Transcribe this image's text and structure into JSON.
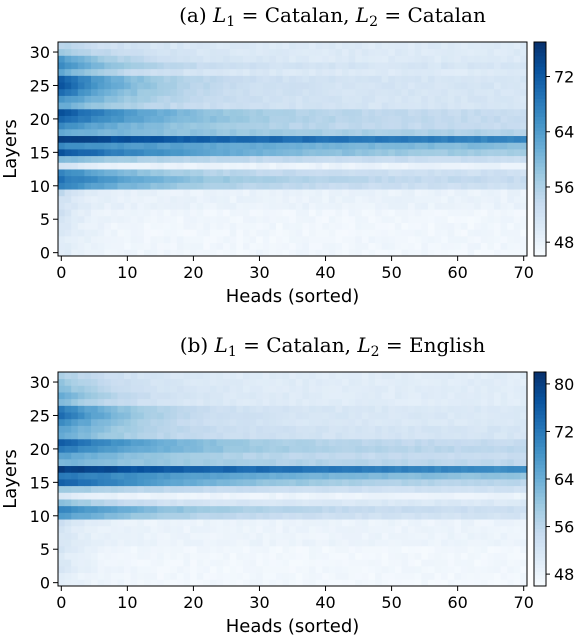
{
  "chart_data": [
    {
      "type": "heatmap",
      "title_parts": [
        "(a) ",
        "L",
        "1",
        " = Catalan, ",
        "L",
        "2",
        " = Catalan"
      ],
      "xlabel": "Heads (sorted)",
      "ylabel": "Layers",
      "xticks": [
        0,
        10,
        20,
        30,
        40,
        50,
        60,
        70
      ],
      "yticks": [
        0,
        5,
        10,
        15,
        20,
        25,
        30
      ],
      "xlim": [
        0,
        71
      ],
      "ylim": [
        0,
        31
      ],
      "colorbar": {
        "ticks": [
          48,
          56,
          64,
          72
        ],
        "min": 46,
        "max": 77
      },
      "colormap": [
        "#f7fbff",
        "#deebf7",
        "#c6dbef",
        "#9ecae1",
        "#6baed6",
        "#4292c6",
        "#2171b5",
        "#08519c",
        "#08306b"
      ],
      "layer_peak_values": [
        50,
        50,
        50,
        51,
        51,
        52,
        52,
        52,
        52,
        54,
        67,
        69,
        67,
        52,
        60,
        73,
        66,
        75,
        62,
        66,
        71,
        73,
        62,
        65,
        70,
        73,
        72,
        62,
        66,
        64,
        58,
        55
      ],
      "layer_tail_values": [
        47,
        47,
        47,
        47,
        47,
        47,
        47,
        48,
        48,
        48,
        52,
        53,
        52,
        48,
        53,
        56,
        58,
        63,
        55,
        53,
        53,
        53,
        51,
        51,
        51,
        51,
        51,
        50,
        51,
        50,
        50,
        50
      ],
      "layer_decay_heads": [
        4,
        4,
        4,
        4,
        4,
        4,
        4,
        4,
        4,
        4,
        18,
        20,
        16,
        4,
        18,
        24,
        40,
        60,
        30,
        20,
        20,
        18,
        14,
        14,
        12,
        12,
        12,
        10,
        12,
        10,
        10,
        10
      ]
    },
    {
      "type": "heatmap",
      "title_parts": [
        "(b) ",
        "L",
        "1",
        " = Catalan, ",
        "L",
        "2",
        " = English"
      ],
      "xlabel": "Heads (sorted)",
      "ylabel": "Layers",
      "xticks": [
        0,
        10,
        20,
        30,
        40,
        50,
        60,
        70
      ],
      "yticks": [
        0,
        5,
        10,
        15,
        20,
        25,
        30
      ],
      "xlim": [
        0,
        71
      ],
      "ylim": [
        0,
        31
      ],
      "colorbar": {
        "ticks": [
          48,
          56,
          64,
          72,
          80
        ],
        "min": 46,
        "max": 82
      },
      "colormap": [
        "#f7fbff",
        "#deebf7",
        "#c6dbef",
        "#9ecae1",
        "#6baed6",
        "#4292c6",
        "#2171b5",
        "#08519c",
        "#08306b"
      ],
      "layer_peak_values": [
        50,
        50,
        52,
        52,
        51,
        52,
        52,
        52,
        52,
        54,
        67,
        70,
        62,
        52,
        60,
        76,
        72,
        80,
        63,
        66,
        72,
        76,
        65,
        66,
        70,
        74,
        72,
        62,
        65,
        62,
        60,
        58
      ],
      "layer_tail_values": [
        47,
        47,
        47,
        47,
        47,
        47,
        48,
        48,
        48,
        48,
        52,
        53,
        51,
        48,
        53,
        55,
        58,
        64,
        55,
        54,
        55,
        54,
        52,
        52,
        51,
        51,
        51,
        50,
        50,
        50,
        50,
        50
      ],
      "layer_decay_heads": [
        4,
        4,
        4,
        4,
        4,
        4,
        4,
        4,
        4,
        4,
        18,
        22,
        10,
        4,
        18,
        24,
        40,
        60,
        30,
        20,
        22,
        20,
        14,
        14,
        12,
        12,
        12,
        10,
        10,
        10,
        10,
        10
      ]
    }
  ]
}
